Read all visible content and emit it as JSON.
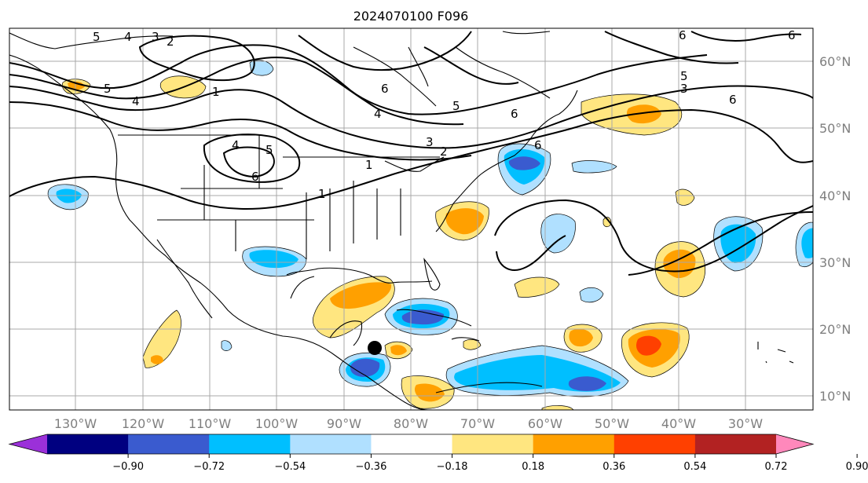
{
  "title": "2024070100 F096",
  "lon_labels": [
    "130°W",
    "120°W",
    "110°W",
    "100°W",
    "90°W",
    "80°W",
    "70°W",
    "60°W",
    "50°W",
    "40°W",
    "30°W"
  ],
  "lat_labels": [
    "60°N",
    "50°N",
    "40°N",
    "30°N",
    "20°N",
    "10°N"
  ],
  "colorbar": {
    "tick_labels": [
      "−0.90",
      "−0.72",
      "−0.54",
      "−0.36",
      "−0.18",
      "0.18",
      "0.36",
      "0.54",
      "0.72",
      "0.90"
    ],
    "colors": [
      "#9b30d9",
      "#000080",
      "#3a5bcf",
      "#00bfff",
      "#b0e0ff",
      "#ffffff",
      "#ffe680",
      "#ffa000",
      "#ff4000",
      "#b22222",
      "#ff88bb"
    ]
  },
  "contour_labels": [
    "5",
    "4",
    "3",
    "2",
    "1",
    "6",
    "4",
    "5",
    "6",
    "1",
    "2",
    "3",
    "4",
    "5",
    "6",
    "6",
    "6",
    "5",
    "3",
    "6",
    "4",
    "5",
    "6",
    "1"
  ],
  "marker": {
    "lon": -85.5,
    "lat": 17.3
  }
}
